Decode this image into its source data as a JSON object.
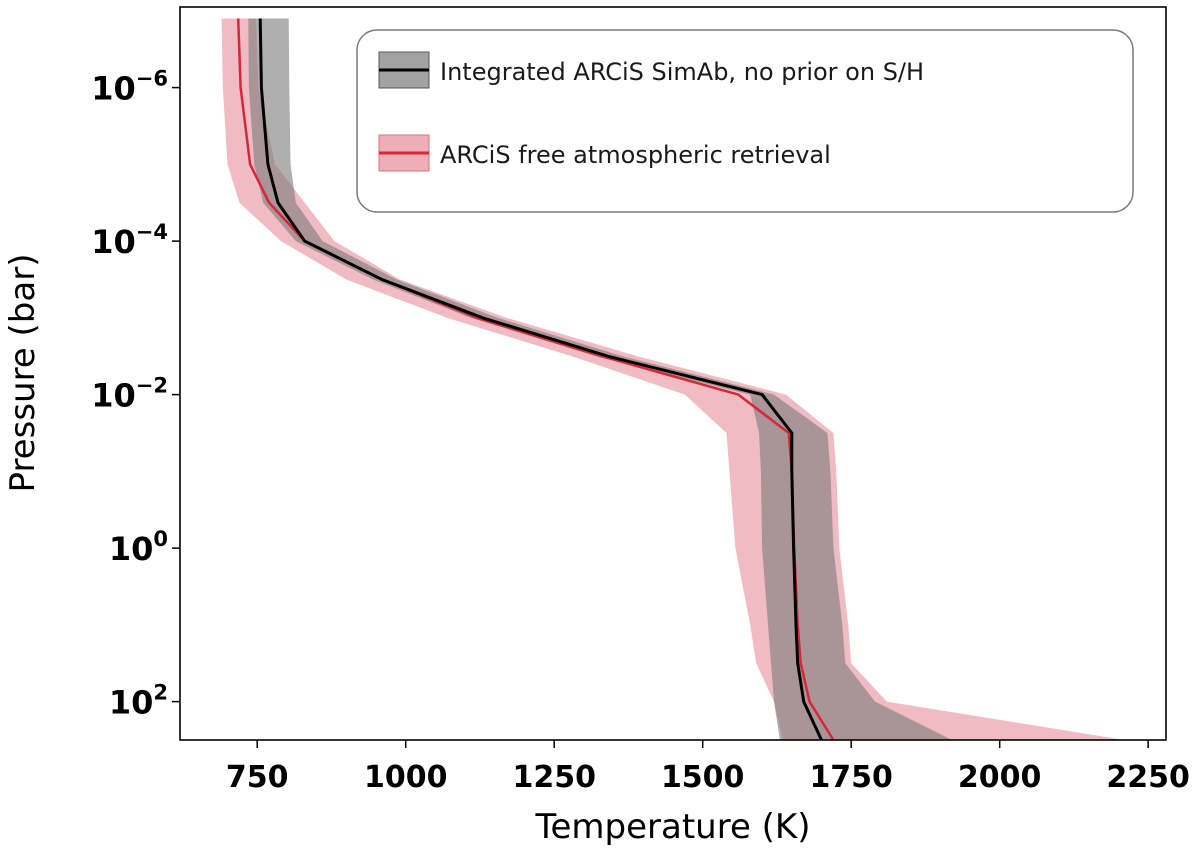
{
  "chart_data": {
    "type": "line",
    "title": "",
    "xlabel": "Temperature (K)",
    "ylabel": "Pressure (bar)",
    "xlim": [
      620,
      2280
    ],
    "ylim_log10": [
      -7.05,
      2.5
    ],
    "y_axis_scale": "log",
    "y_axis_inverted": true,
    "x_ticks": [
      {
        "value": 750,
        "label": "750"
      },
      {
        "value": 1000,
        "label": "1000"
      },
      {
        "value": 1250,
        "label": "1250"
      },
      {
        "value": 1500,
        "label": "1500"
      },
      {
        "value": 1750,
        "label": "1750"
      },
      {
        "value": 2000,
        "label": "2000"
      },
      {
        "value": 2250,
        "label": "2250"
      }
    ],
    "y_ticks": [
      {
        "log10": -6,
        "base": "10",
        "exp": "−6"
      },
      {
        "log10": -4,
        "base": "10",
        "exp": "−4"
      },
      {
        "log10": -2,
        "base": "10",
        "exp": "−2"
      },
      {
        "log10": 0,
        "base": "10",
        "exp": "0"
      },
      {
        "log10": 2,
        "base": "10",
        "exp": "2"
      }
    ],
    "grid": false,
    "legend_position": "top-right",
    "series": [
      {
        "name": "ARCiS free atmospheric retrieval",
        "color": "#d62738",
        "fill_color": "#e27885",
        "log10_pressure": [
          -6.9,
          -6,
          -5,
          -4.5,
          -4,
          -3.5,
          -3,
          -2.5,
          -2,
          -1.5,
          -1,
          0,
          1,
          1.5,
          2,
          2.5
        ],
        "median": [
          718,
          722,
          738,
          770,
          830,
          960,
          1120,
          1330,
          1560,
          1645,
          1650,
          1654,
          1660,
          1665,
          1680,
          1720
        ],
        "lower": [
          690,
          692,
          700,
          720,
          790,
          900,
          1070,
          1280,
          1470,
          1540,
          1545,
          1555,
          1580,
          1590,
          1620,
          1635
        ],
        "upper": [
          748,
          752,
          780,
          830,
          880,
          990,
          1170,
          1390,
          1640,
          1720,
          1725,
          1730,
          1745,
          1750,
          1810,
          2210
        ]
      },
      {
        "name": "Integrated ARCiS SimAb, no prior on S/H",
        "color": "#000000",
        "fill_color": "#7a7a7a",
        "log10_pressure": [
          -6.9,
          -6,
          -5,
          -4.5,
          -4,
          -3.5,
          -3,
          -2.5,
          -2,
          -1.5,
          -1,
          0,
          1,
          1.5,
          2,
          2.5
        ],
        "median": [
          755,
          757,
          768,
          785,
          830,
          960,
          1130,
          1340,
          1600,
          1650,
          1650,
          1653,
          1657,
          1660,
          1670,
          1700
        ],
        "lower": [
          735,
          736,
          745,
          760,
          815,
          945,
          1110,
          1320,
          1580,
          1595,
          1598,
          1600,
          1610,
          1615,
          1620,
          1630
        ],
        "upper": [
          803,
          804,
          806,
          815,
          860,
          985,
          1155,
          1365,
          1620,
          1710,
          1715,
          1720,
          1735,
          1740,
          1790,
          1920
        ]
      }
    ]
  }
}
